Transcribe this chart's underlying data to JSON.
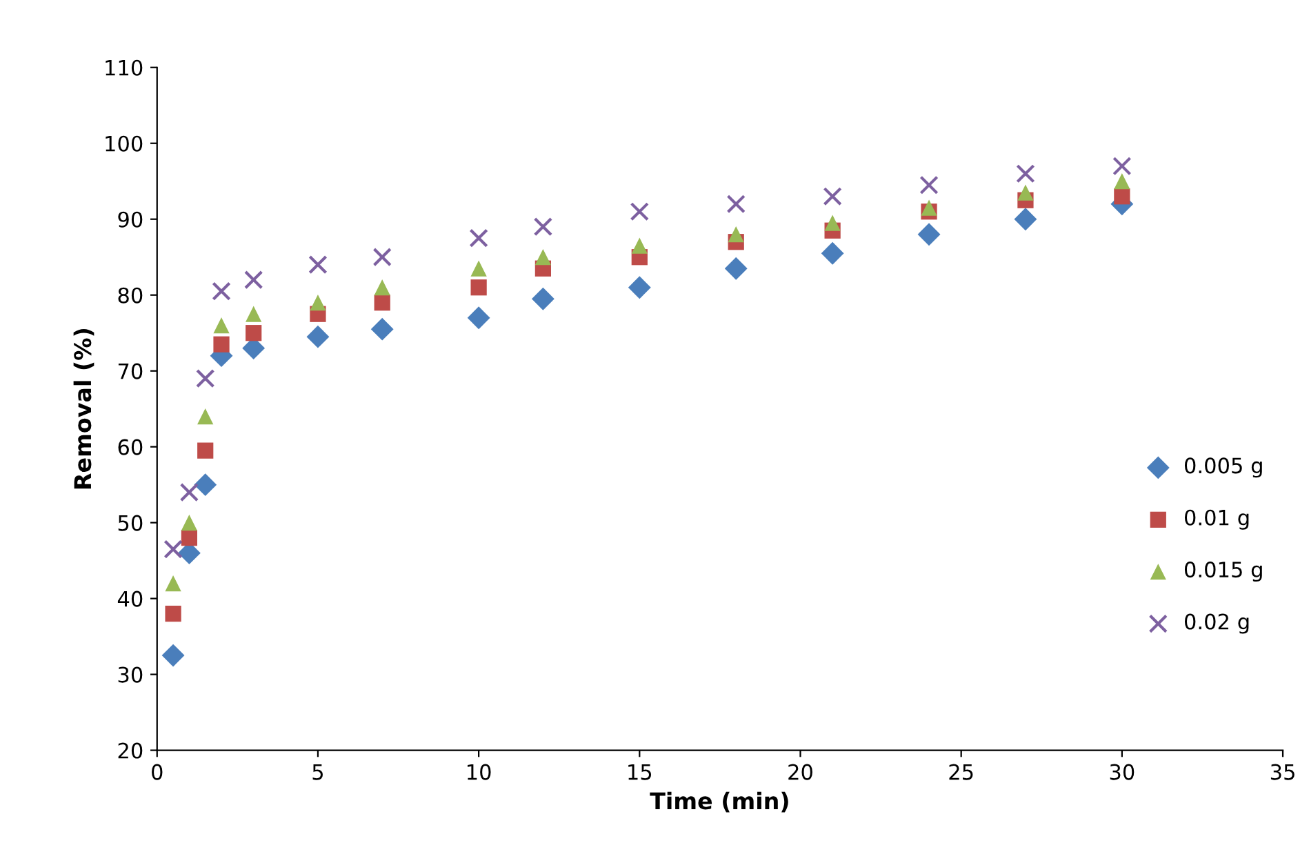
{
  "chart_data": {
    "type": "scatter",
    "xlabel": "Time (min)",
    "ylabel": "Removal (%)",
    "x": [
      0.5,
      1,
      1.5,
      2,
      3,
      5,
      7,
      10,
      12,
      15,
      18,
      21,
      24,
      27,
      30
    ],
    "series": [
      {
        "name": "0.005 g",
        "color": "#4a7ebb",
        "marker": "diamond",
        "values": [
          32.5,
          46,
          55,
          72,
          73,
          74.5,
          75.5,
          77,
          79.5,
          81,
          83.5,
          85.5,
          88,
          90,
          92
        ]
      },
      {
        "name": "0.01 g",
        "color": "#be4b48",
        "marker": "square",
        "values": [
          38,
          48,
          59.5,
          73.5,
          75,
          77.5,
          79,
          81,
          83.5,
          85,
          87,
          88.5,
          91,
          92.5,
          93
        ]
      },
      {
        "name": "0.015 g",
        "color": "#98b954",
        "marker": "triangle",
        "values": [
          42,
          50,
          64,
          76,
          77.5,
          79,
          81,
          83.5,
          85,
          86.5,
          88,
          89.5,
          91.5,
          93.5,
          95
        ]
      },
      {
        "name": "0.02 g",
        "color": "#7d60a0",
        "marker": "cross",
        "values": [
          46.5,
          54,
          69,
          80.5,
          82,
          84,
          85,
          87.5,
          89,
          91,
          92,
          93,
          94.5,
          96,
          97
        ]
      }
    ],
    "xlim": [
      0,
      35
    ],
    "xticks": [
      0,
      5,
      10,
      15,
      20,
      25,
      30,
      35
    ],
    "ylim": [
      20,
      110
    ],
    "yticks": [
      20,
      30,
      40,
      50,
      60,
      70,
      80,
      90,
      100,
      110
    ],
    "grid": false,
    "legend": "right"
  }
}
